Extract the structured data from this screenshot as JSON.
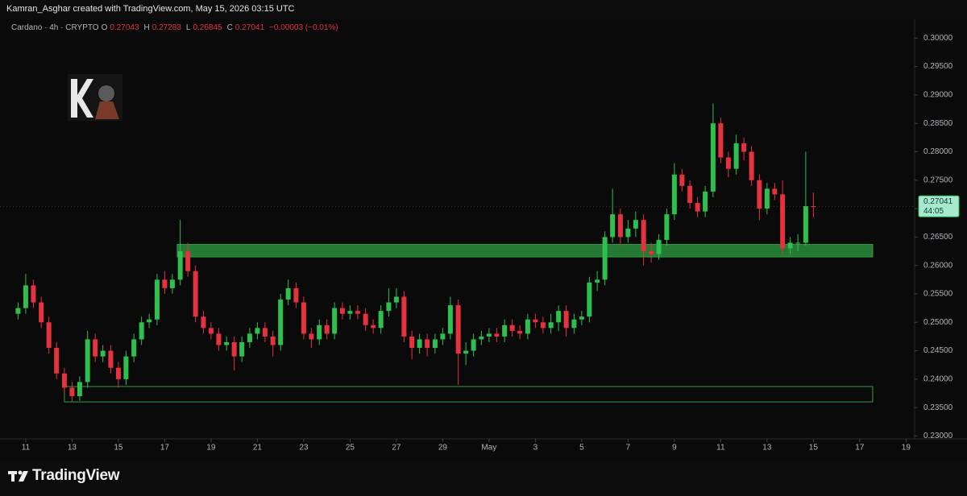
{
  "header": {
    "credit": "Kamran_Asghar created with TradingView.com, May 15, 2026 03:15 UTC"
  },
  "chart_data": {
    "type": "candlestick",
    "symbol": "Cardano · 4h · CRYPTO",
    "ohlc_labels": [
      "O",
      "H",
      "L",
      "C"
    ],
    "change": "−0.00003 (−0.01%)",
    "countdown": "44:05",
    "up_color": "#2fbf4f",
    "down_color": "#e5323f",
    "zone_color": "#2ea043",
    "x": [
      10.67,
      11,
      11.33,
      11.67,
      12,
      12.33,
      12.67,
      13,
      13.33,
      13.67,
      14,
      14.33,
      14.67,
      15,
      15.33,
      15.67,
      16,
      16.33,
      16.67,
      17,
      17.33,
      17.67,
      18,
      18.33,
      18.67,
      19,
      19.33,
      19.67,
      20,
      20.33,
      20.67,
      21,
      21.33,
      21.67,
      22,
      22.33,
      22.67,
      23,
      23.33,
      23.67,
      24,
      24.33,
      24.67,
      25,
      25.33,
      25.67,
      26,
      26.33,
      26.67,
      27,
      27.33,
      27.67,
      28,
      28.33,
      28.67,
      29,
      29.33,
      29.67,
      30,
      30.33,
      30.67,
      31,
      31.33,
      31.67,
      32,
      32.33,
      32.67,
      33,
      33.33,
      33.67,
      34,
      34.33,
      34.67,
      35,
      35.33,
      35.67,
      36,
      36.33,
      36.67,
      37,
      37.33,
      37.67,
      38,
      38.33,
      38.67,
      39,
      39.33,
      39.67,
      40,
      40.33,
      40.67,
      41,
      41.33,
      41.67,
      42,
      42.33,
      42.67,
      43,
      43.33,
      43.67,
      44,
      44.33,
      44.67,
      45
    ],
    "open": [
      0.2515,
      0.2525,
      0.2565,
      0.2535,
      0.25,
      0.2455,
      0.241,
      0.2385,
      0.237,
      0.2395,
      0.247,
      0.244,
      0.245,
      0.242,
      0.24,
      0.244,
      0.247,
      0.25,
      0.2505,
      0.2575,
      0.256,
      0.2575,
      0.2625,
      0.259,
      0.251,
      0.249,
      0.248,
      0.246,
      0.2465,
      0.244,
      0.2465,
      0.248,
      0.249,
      0.2475,
      0.246,
      0.254,
      0.256,
      0.2535,
      0.248,
      0.247,
      0.2495,
      0.248,
      0.2525,
      0.2515,
      0.252,
      0.2515,
      0.2495,
      0.249,
      0.252,
      0.2535,
      0.2545,
      0.2475,
      0.2455,
      0.247,
      0.2455,
      0.247,
      0.248,
      0.253,
      0.2445,
      0.245,
      0.247,
      0.2475,
      0.248,
      0.2475,
      0.2495,
      0.2485,
      0.248,
      0.2505,
      0.25,
      0.249,
      0.25,
      0.252,
      0.249,
      0.2505,
      0.251,
      0.257,
      0.2575,
      0.265,
      0.269,
      0.265,
      0.2665,
      0.268,
      0.2625,
      0.262,
      0.2645,
      0.269,
      0.276,
      0.274,
      0.271,
      0.2695,
      0.273,
      0.285,
      0.279,
      0.277,
      0.2815,
      0.28,
      0.275,
      0.27,
      0.2735,
      0.2725,
      0.263,
      0.264,
      0.264,
      0.27043
    ],
    "high": [
      0.2535,
      0.2585,
      0.2575,
      0.2545,
      0.251,
      0.2465,
      0.242,
      0.2395,
      0.2405,
      0.2485,
      0.248,
      0.246,
      0.246,
      0.243,
      0.245,
      0.248,
      0.251,
      0.2515,
      0.2585,
      0.259,
      0.2585,
      0.268,
      0.264,
      0.26,
      0.252,
      0.25,
      0.249,
      0.2475,
      0.2475,
      0.2475,
      0.249,
      0.25,
      0.25,
      0.2485,
      0.255,
      0.2575,
      0.257,
      0.2545,
      0.249,
      0.2505,
      0.2505,
      0.2535,
      0.2535,
      0.253,
      0.253,
      0.2525,
      0.2505,
      0.253,
      0.256,
      0.256,
      0.2555,
      0.2485,
      0.248,
      0.248,
      0.248,
      0.249,
      0.2545,
      0.254,
      0.2465,
      0.248,
      0.2485,
      0.249,
      0.249,
      0.2505,
      0.2505,
      0.2495,
      0.2515,
      0.2515,
      0.251,
      0.2515,
      0.253,
      0.253,
      0.2515,
      0.252,
      0.258,
      0.259,
      0.266,
      0.2735,
      0.27,
      0.268,
      0.2695,
      0.269,
      0.264,
      0.2655,
      0.27,
      0.278,
      0.277,
      0.275,
      0.272,
      0.274,
      0.2885,
      0.286,
      0.28,
      0.283,
      0.2825,
      0.281,
      0.276,
      0.2745,
      0.2745,
      0.275,
      0.265,
      0.2655,
      0.28,
      0.27283
    ],
    "low": [
      0.2505,
      0.2515,
      0.2525,
      0.249,
      0.2445,
      0.24,
      0.2375,
      0.236,
      0.2362,
      0.2385,
      0.243,
      0.243,
      0.241,
      0.2385,
      0.239,
      0.243,
      0.246,
      0.249,
      0.2495,
      0.255,
      0.255,
      0.2565,
      0.258,
      0.25,
      0.248,
      0.247,
      0.245,
      0.245,
      0.2415,
      0.243,
      0.2455,
      0.247,
      0.2465,
      0.244,
      0.245,
      0.253,
      0.2525,
      0.247,
      0.2455,
      0.246,
      0.247,
      0.247,
      0.2505,
      0.2505,
      0.2505,
      0.2485,
      0.248,
      0.248,
      0.251,
      0.2525,
      0.2465,
      0.2435,
      0.2445,
      0.244,
      0.2445,
      0.246,
      0.247,
      0.239,
      0.2425,
      0.244,
      0.246,
      0.2465,
      0.2465,
      0.2465,
      0.2475,
      0.247,
      0.247,
      0.249,
      0.248,
      0.248,
      0.2485,
      0.2475,
      0.248,
      0.2495,
      0.25,
      0.2555,
      0.2565,
      0.264,
      0.2635,
      0.264,
      0.265,
      0.26,
      0.2605,
      0.261,
      0.2635,
      0.268,
      0.273,
      0.27,
      0.2685,
      0.2685,
      0.272,
      0.278,
      0.2755,
      0.276,
      0.2785,
      0.274,
      0.268,
      0.269,
      0.2715,
      0.262,
      0.262,
      0.2625,
      0.2635,
      0.26845
    ],
    "close": [
      0.2525,
      0.2565,
      0.2535,
      0.25,
      0.2455,
      0.241,
      0.2385,
      0.237,
      0.2395,
      0.247,
      0.244,
      0.245,
      0.242,
      0.24,
      0.244,
      0.247,
      0.25,
      0.2505,
      0.2575,
      0.256,
      0.2575,
      0.2625,
      0.259,
      0.251,
      0.249,
      0.248,
      0.246,
      0.2465,
      0.244,
      0.2465,
      0.248,
      0.249,
      0.2475,
      0.246,
      0.254,
      0.256,
      0.2535,
      0.248,
      0.247,
      0.2495,
      0.248,
      0.2525,
      0.2515,
      0.252,
      0.2515,
      0.2495,
      0.249,
      0.252,
      0.2535,
      0.2545,
      0.2475,
      0.2455,
      0.247,
      0.2455,
      0.247,
      0.248,
      0.253,
      0.2445,
      0.245,
      0.247,
      0.2475,
      0.248,
      0.2475,
      0.2495,
      0.2485,
      0.248,
      0.2505,
      0.25,
      0.249,
      0.25,
      0.252,
      0.249,
      0.2505,
      0.251,
      0.257,
      0.2575,
      0.265,
      0.269,
      0.265,
      0.2665,
      0.268,
      0.2625,
      0.262,
      0.2645,
      0.269,
      0.276,
      0.274,
      0.271,
      0.2695,
      0.273,
      0.285,
      0.279,
      0.277,
      0.2815,
      0.28,
      0.275,
      0.27,
      0.2735,
      0.2725,
      0.263,
      0.264,
      0.264,
      0.27043,
      0.27041
    ],
    "zones": [
      {
        "from": 17.54,
        "to": 47.56,
        "low": 0.2615,
        "high": 0.2637,
        "filled": true
      },
      {
        "from": 12.67,
        "to": 47.56,
        "low": 0.236,
        "high": 0.2387,
        "filled": false
      }
    ],
    "xlim": [
      9.89,
      49.37
    ],
    "xticks": [
      11,
      13,
      15,
      17,
      19,
      21,
      23,
      25,
      27,
      29,
      {
        "value": 31,
        "label": "May"
      },
      {
        "value": 33,
        "label": "3"
      },
      {
        "value": 35,
        "label": "5"
      },
      {
        "value": 37,
        "label": "7"
      },
      {
        "value": 39,
        "label": "9"
      },
      {
        "value": 41,
        "label": "11"
      },
      {
        "value": 43,
        "label": "13"
      },
      {
        "value": 45,
        "label": "15"
      },
      {
        "value": 47,
        "label": "17"
      },
      {
        "value": 49,
        "label": "19"
      }
    ],
    "ylim": [
      0.2295,
      0.3033
    ],
    "yticks": [
      {
        "value": 0.23,
        "label": "0.23000"
      },
      {
        "value": 0.235,
        "label": "0.23500"
      },
      {
        "value": 0.24,
        "label": "0.24000"
      },
      {
        "value": 0.245,
        "label": "0.24500"
      },
      {
        "value": 0.25,
        "label": "0.25000"
      },
      {
        "value": 0.255,
        "label": "0.25500"
      },
      {
        "value": 0.26,
        "label": "0.26000"
      },
      {
        "value": 0.265,
        "label": "0.26500"
      },
      {
        "value": 0.27,
        "label": "0.27000"
      },
      {
        "value": 0.275,
        "label": "0.27500"
      },
      {
        "value": 0.28,
        "label": "0.28000"
      },
      {
        "value": 0.285,
        "label": "0.28500"
      },
      {
        "value": 0.29,
        "label": "0.29000"
      },
      {
        "value": 0.295,
        "label": "0.29500"
      },
      {
        "value": 0.3,
        "label": "0.30000"
      }
    ]
  },
  "footer": {
    "brand": "TradingView"
  }
}
